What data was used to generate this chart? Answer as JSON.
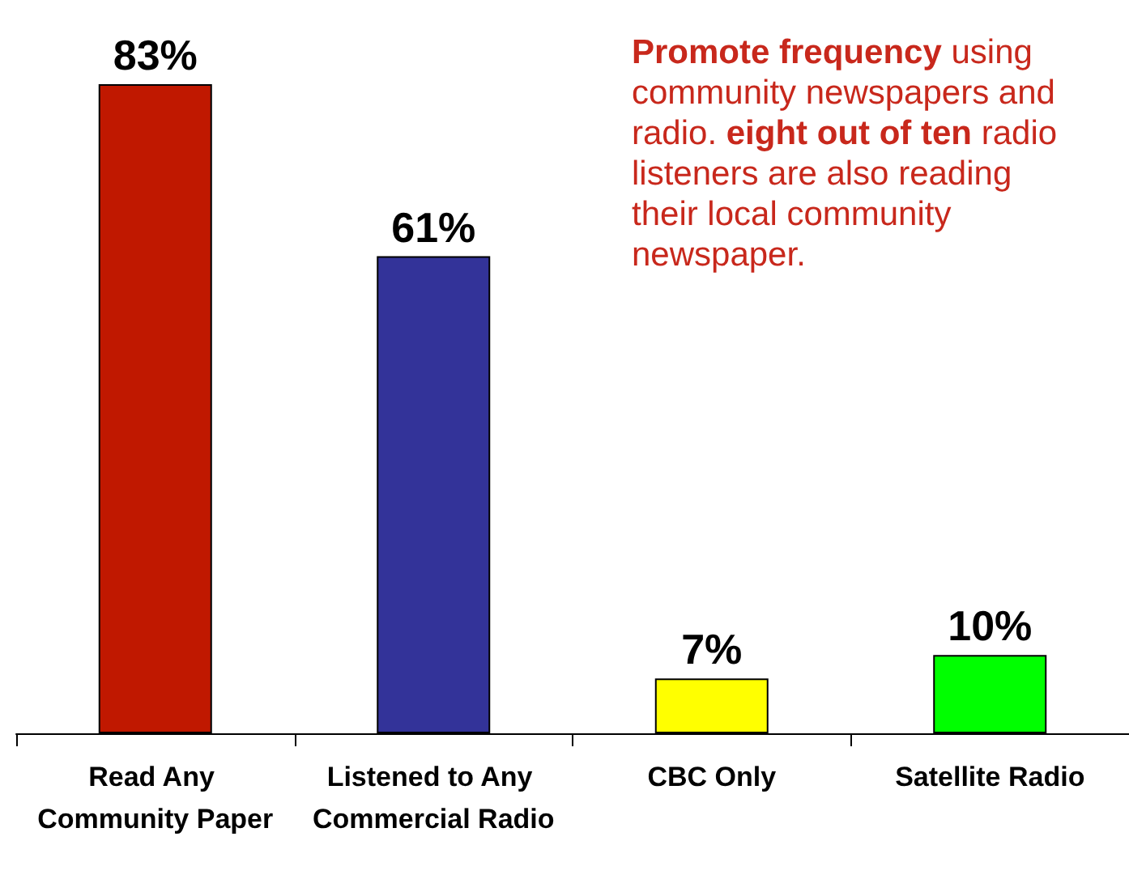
{
  "chart_data": {
    "type": "bar",
    "categories": [
      "Read Any Community Paper",
      "Listened to Any Commercial Radio",
      "CBC Only",
      "Satellite Radio"
    ],
    "values": [
      83,
      61,
      7,
      10
    ],
    "colors": [
      "#c01800",
      "#333399",
      "#ffff00",
      "#00ff00"
    ],
    "value_labels": [
      "83%",
      "61%",
      "7%",
      "10%"
    ],
    "annotations": [
      "Promote frequency",
      "using community newspapers and radio.",
      "eight out of ten",
      "radio listeners are also reading their local community newspaper."
    ]
  }
}
